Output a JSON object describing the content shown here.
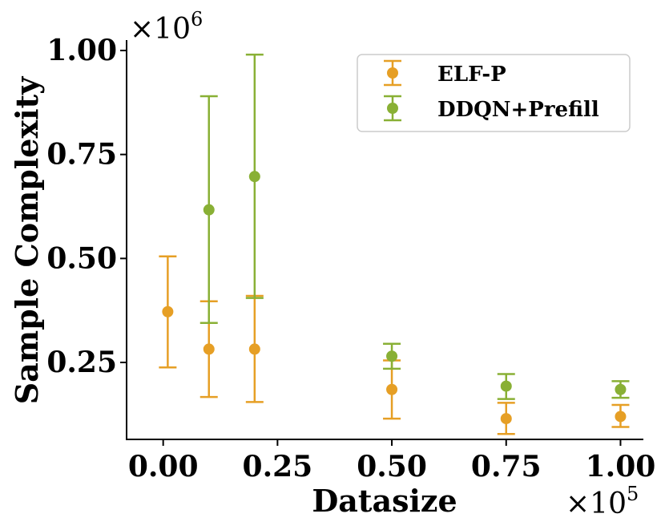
{
  "chart_data": {
    "type": "scatter",
    "title": "",
    "xlabel": "Datasize",
    "ylabel": "Sample Complexity",
    "x_multiplier": {
      "base": "×10",
      "exp": "5"
    },
    "y_multiplier": {
      "base": "×10",
      "exp": "6"
    },
    "xlim": [
      -0.08,
      1.05
    ],
    "ylim": [
      0.065,
      1.025
    ],
    "x_ticks": [
      0.0,
      0.25,
      0.5,
      0.75,
      1.0
    ],
    "x_tick_labels": [
      "0.00",
      "0.25",
      "0.50",
      "0.75",
      "1.00"
    ],
    "y_ticks": [
      0.25,
      0.5,
      0.75,
      1.0
    ],
    "y_tick_labels": [
      "0.25",
      "0.50",
      "0.75",
      "1.00"
    ],
    "grid": false,
    "legend_position": "top-right",
    "series": [
      {
        "name": "ELF-P",
        "color": "#E69F25",
        "x": [
          0.01,
          0.1,
          0.2,
          0.5,
          0.75,
          1.0
        ],
        "y": [
          0.372,
          0.282,
          0.282,
          0.185,
          0.115,
          0.12
        ],
        "y_low": [
          0.238,
          0.167,
          0.155,
          0.115,
          0.078,
          0.095
        ],
        "y_high": [
          0.505,
          0.397,
          0.41,
          0.255,
          0.153,
          0.148
        ]
      },
      {
        "name": "DDQN+Prefill",
        "color": "#89B035",
        "x": [
          0.1,
          0.2,
          0.5,
          0.75,
          1.0
        ],
        "y": [
          0.617,
          0.697,
          0.265,
          0.193,
          0.185
        ],
        "y_low": [
          0.345,
          0.405,
          0.235,
          0.162,
          0.165
        ],
        "y_high": [
          0.89,
          0.99,
          0.295,
          0.222,
          0.205
        ]
      }
    ]
  }
}
